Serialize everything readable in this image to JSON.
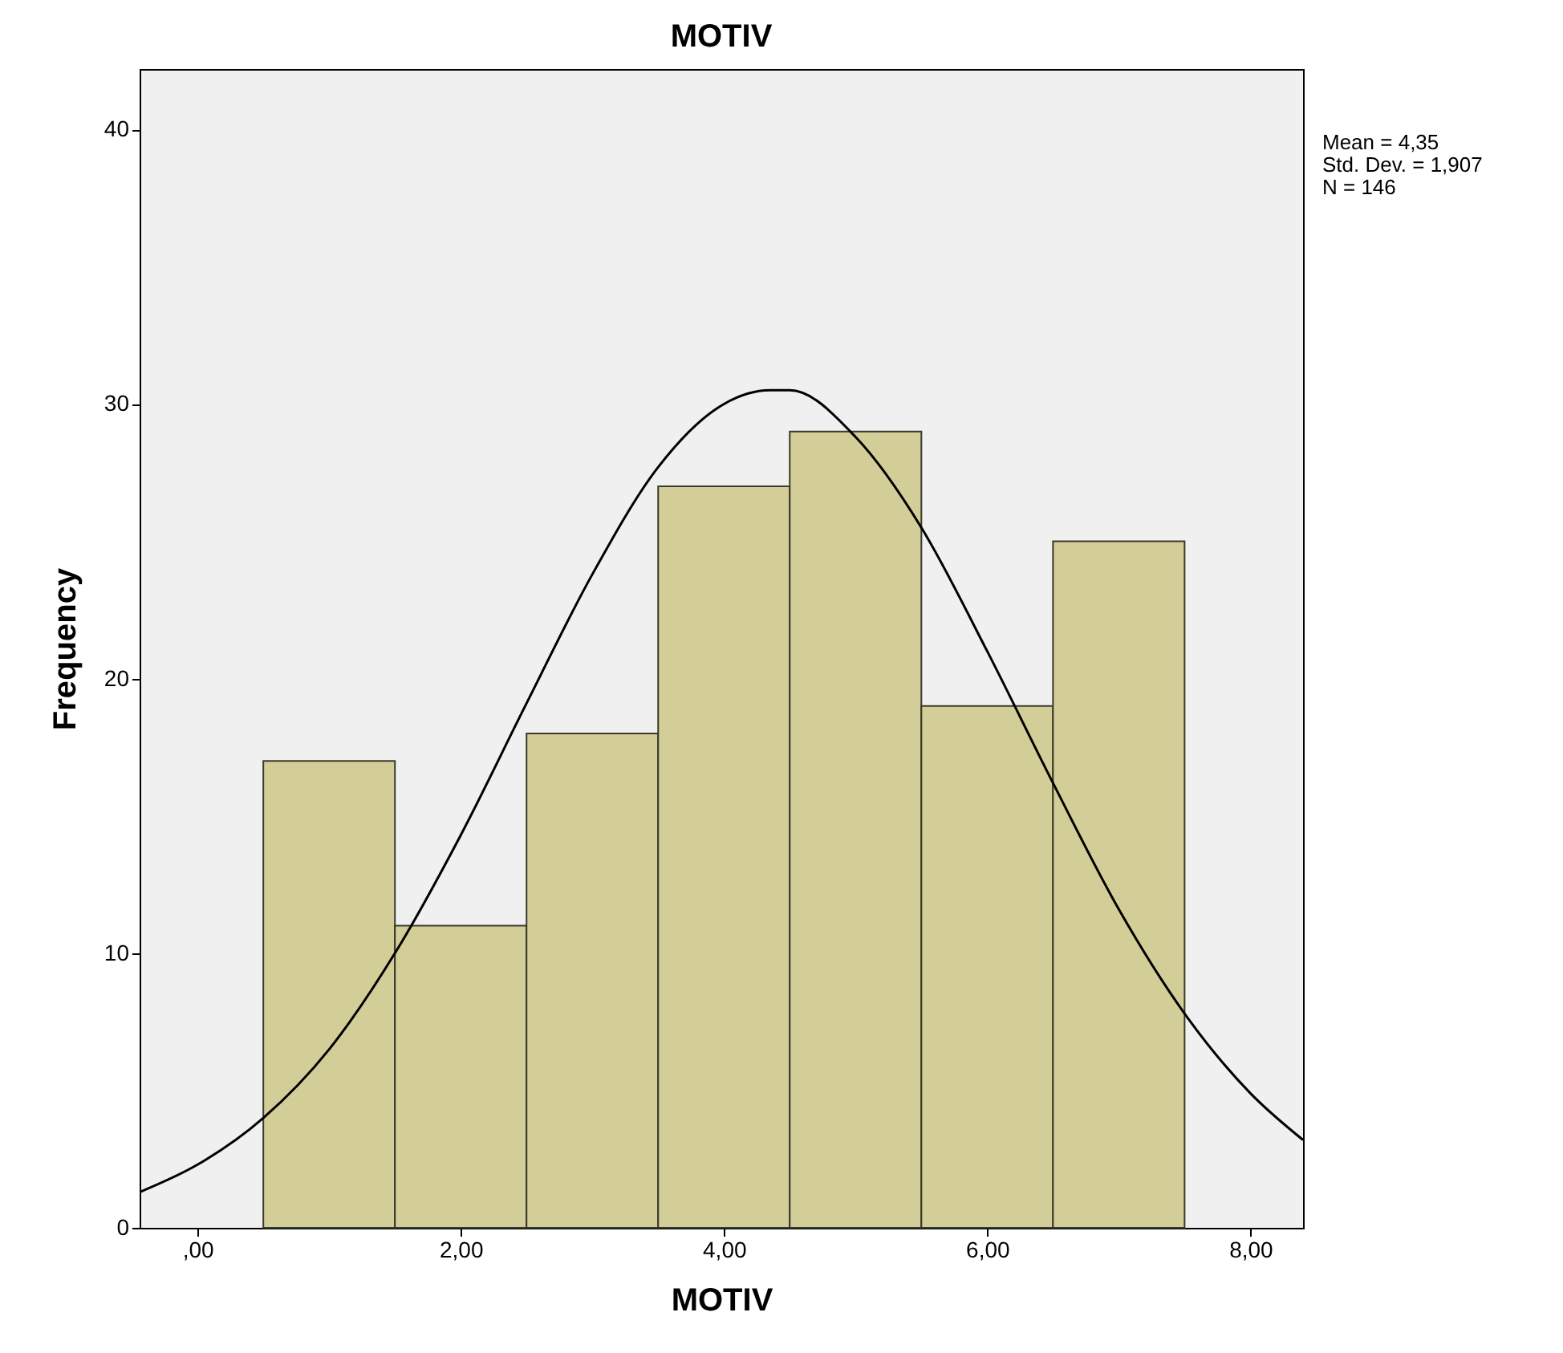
{
  "chart_data": {
    "type": "histogram",
    "title": "MOTIV",
    "xlabel": "MOTIV",
    "ylabel": "Frequency",
    "annotations": [
      "Mean = 4,35",
      "Std. Dev. = 1,907",
      "N = 146"
    ],
    "bins": [
      0.5,
      1.5,
      2.5,
      3.5,
      4.5,
      5.5,
      6.5,
      7.5
    ],
    "values": [
      17,
      11,
      18,
      27,
      29,
      19,
      25
    ],
    "color": "#d3ce97",
    "series": [
      {
        "type": "line",
        "color": "#000000",
        "x": [
          -0.44,
          0,
          0.5,
          1,
          1.5,
          2,
          2.5,
          3,
          3.5,
          4,
          4.35,
          4.5,
          5,
          5.5,
          6,
          6.5,
          7,
          7.5,
          8,
          8.4
        ],
        "values": [
          1.3,
          2.3,
          4.0,
          6.5,
          10.0,
          14.3,
          19.1,
          23.8,
          27.7,
          30.0,
          30.5,
          30.5,
          28.8,
          25.5,
          21.0,
          16.2,
          11.6,
          7.8,
          4.9,
          3.2
        ]
      }
    ],
    "xlim": [
      -0.44,
      8.4
    ],
    "ylim": [
      0,
      42.2
    ],
    "xticks": [
      {
        "value": 0,
        "label": ",00"
      },
      {
        "value": 2,
        "label": "2,00"
      },
      {
        "value": 4,
        "label": "4,00"
      },
      {
        "value": 6,
        "label": "6,00"
      },
      {
        "value": 8,
        "label": "8,00"
      }
    ],
    "yticks": [
      0,
      10,
      20,
      30,
      40
    ]
  }
}
